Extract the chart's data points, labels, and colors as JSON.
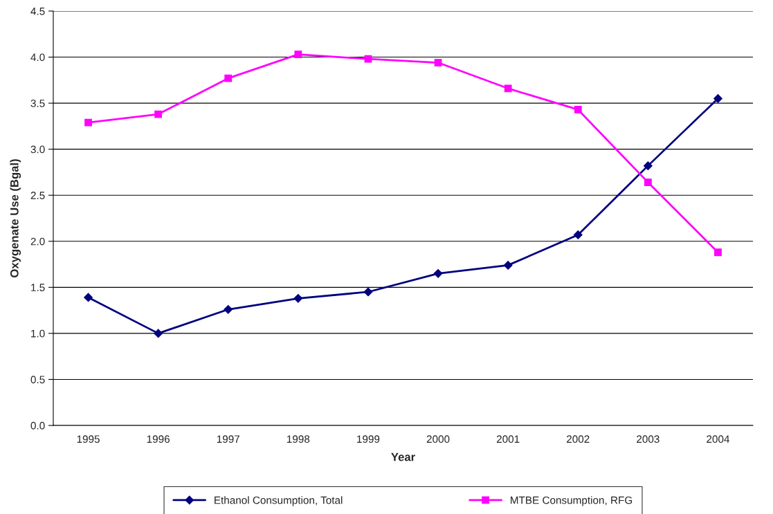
{
  "chart_data": {
    "type": "line",
    "xlabel": "Year",
    "ylabel": "Oxygenate Use (Bgal)",
    "categories": [
      "1995",
      "1996",
      "1997",
      "1998",
      "1999",
      "2000",
      "2001",
      "2002",
      "2003",
      "2004"
    ],
    "series": [
      {
        "name": "Ethanol Consumption, Total",
        "color": "#000080",
        "marker": "diamond",
        "values": [
          1.39,
          1.0,
          1.26,
          1.38,
          1.45,
          1.65,
          1.74,
          2.07,
          2.82,
          3.55
        ]
      },
      {
        "name": "MTBE Consumption, RFG",
        "color": "#ff00ff",
        "marker": "square",
        "values": [
          3.29,
          3.38,
          3.77,
          4.03,
          3.98,
          3.94,
          3.66,
          3.43,
          2.64,
          1.88
        ]
      }
    ],
    "ylim": [
      0,
      4.5
    ],
    "yticks": [
      {
        "value": 0,
        "label": "0.0"
      },
      0.5,
      {
        "value": 1,
        "label": "1.0"
      },
      1.5,
      {
        "value": 2,
        "label": "2.0"
      },
      2.5,
      {
        "value": 3,
        "label": "3.0"
      },
      3.5,
      {
        "value": 4,
        "label": "4.0"
      },
      4.5
    ],
    "grid": "y",
    "legend": "bottom",
    "line_style": "solid"
  }
}
